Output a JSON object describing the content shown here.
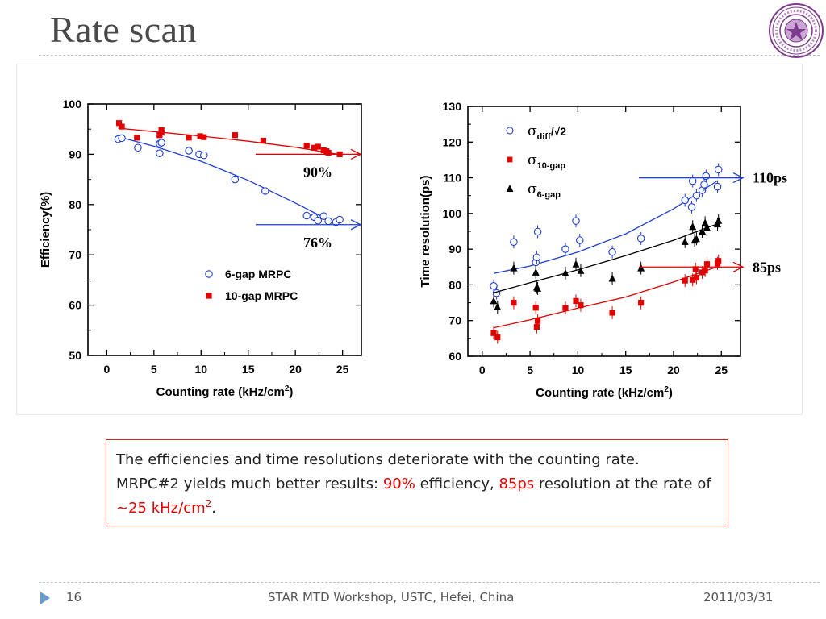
{
  "slide": {
    "title": "Rate scan",
    "footer": {
      "page": "16",
      "center": "STAR MTD Workshop, USTC, Hefei, China",
      "date": "2011/03/31"
    }
  },
  "textbox": {
    "line1": "The efficiencies and time resolutions deteriorate with the counting rate.",
    "line2_a": "MRPC#2 yields much better results: ",
    "line2_eff": "90%",
    "line2_b": " efficiency, ",
    "line2_res": "85ps",
    "line2_c": " resolution at the rate of ",
    "line2_rate": "~25 kHz/cm",
    "line2_sup": "2",
    "line2_end": "."
  },
  "colors": {
    "blue": "#1f3fd0",
    "red": "#e00000",
    "black": "#000000",
    "title": "#4a4a4a",
    "box_border": "#dd2222"
  },
  "chart_data": [
    {
      "type": "scatter",
      "xlabel": "Counting rate (kHz/cm",
      "xlabel_sup": "2",
      "xlabel_end": ")",
      "ylabel": "Efficiency(%)",
      "xlim": [
        -2,
        27
      ],
      "ylim": [
        50,
        100
      ],
      "xticks": [
        0,
        5,
        10,
        15,
        20,
        25
      ],
      "yticks": [
        50,
        60,
        70,
        80,
        90,
        100
      ],
      "legend_position": "bottom-right",
      "series": [
        {
          "name": "6-gap MRPC",
          "marker": "open-circle",
          "color": "#1f3fd0",
          "points": [
            [
              1.2,
              93
            ],
            [
              1.6,
              93.2
            ],
            [
              3.3,
              91.3
            ],
            [
              5.6,
              90.2
            ],
            [
              5.6,
              92.1
            ],
            [
              5.8,
              92.3
            ],
            [
              8.7,
              90.7
            ],
            [
              9.8,
              90
            ],
            [
              10.3,
              89.8
            ],
            [
              13.6,
              85
            ],
            [
              16.8,
              82.7
            ],
            [
              21.2,
              77.8
            ],
            [
              22,
              77.5
            ],
            [
              22.4,
              76.8
            ],
            [
              23,
              77.7
            ],
            [
              23.5,
              76.7
            ],
            [
              24.3,
              76.5
            ],
            [
              24.7,
              77
            ]
          ],
          "fit": [
            [
              1.2,
              93.5
            ],
            [
              5,
              91.6
            ],
            [
              10,
              88.6
            ],
            [
              15,
              84.8
            ],
            [
              20,
              80.3
            ],
            [
              24.5,
              76
            ]
          ]
        },
        {
          "name": "10-gap MRPC",
          "marker": "filled-square",
          "color": "#e00000",
          "points": [
            [
              1.3,
              96.2
            ],
            [
              1.6,
              95.5
            ],
            [
              3.2,
              93.3
            ],
            [
              5.6,
              93.8
            ],
            [
              5.8,
              94.3
            ],
            [
              5.8,
              94.8
            ],
            [
              8.7,
              93.3
            ],
            [
              9.9,
              93.6
            ],
            [
              10.3,
              93.4
            ],
            [
              13.6,
              93.8
            ],
            [
              16.6,
              92.7
            ],
            [
              21.2,
              91.7
            ],
            [
              22,
              91.3
            ],
            [
              22.4,
              91.5
            ],
            [
              23,
              90.8
            ],
            [
              23.3,
              90.6
            ],
            [
              23.5,
              90.3
            ],
            [
              24.7,
              90
            ]
          ],
          "fit": [
            [
              1.2,
              95.2
            ],
            [
              5,
              94.5
            ],
            [
              10,
              93.6
            ],
            [
              15,
              92.6
            ],
            [
              20,
              91.4
            ],
            [
              24.5,
              90
            ]
          ]
        }
      ],
      "annotations": [
        {
          "text": "90%",
          "arrow_y": 90
        },
        {
          "text": "76%",
          "arrow_y": 76
        }
      ]
    },
    {
      "type": "scatter",
      "xlabel": "Counting rate (kHz/cm",
      "xlabel_sup": "2",
      "xlabel_end": ")",
      "ylabel": "Time resolution(ps)",
      "xlim": [
        -1.5,
        27
      ],
      "ylim": [
        60,
        130
      ],
      "xticks": [
        0,
        5,
        10,
        15,
        20,
        25
      ],
      "yticks": [
        60,
        70,
        80,
        90,
        100,
        110,
        120,
        130
      ],
      "legend_position": "top-left",
      "series": [
        {
          "name": "σ_diff/√2",
          "legend_main": "σ",
          "legend_sub": "diff",
          "legend_tail": "/√2",
          "marker": "open-circle",
          "color": "#1f3fd0",
          "points": [
            [
              1.2,
              79.7
            ],
            [
              1.5,
              77.7
            ],
            [
              3.3,
              92
            ],
            [
              5.6,
              86.3
            ],
            [
              5.7,
              87.7
            ],
            [
              5.8,
              94.9
            ],
            [
              8.7,
              90
            ],
            [
              9.8,
              97.9
            ],
            [
              10.2,
              92.5
            ],
            [
              13.6,
              89.2
            ],
            [
              16.6,
              93
            ],
            [
              21.2,
              103.7
            ],
            [
              21.9,
              101.8
            ],
            [
              22,
              109.1
            ],
            [
              22.4,
              105
            ],
            [
              23,
              106.5
            ],
            [
              23.2,
              108.1
            ],
            [
              23.4,
              110.5
            ],
            [
              24.6,
              107.5
            ],
            [
              24.7,
              112.3
            ]
          ],
          "fit": [
            [
              1.2,
              83.2
            ],
            [
              5,
              85.3
            ],
            [
              10,
              89.2
            ],
            [
              15,
              94.3
            ],
            [
              20,
              101.3
            ],
            [
              24.5,
              109
            ]
          ]
        },
        {
          "name": "σ_10-gap",
          "legend_main": "σ",
          "legend_sub": "10-gap",
          "legend_tail": "",
          "marker": "filled-square",
          "color": "#e00000",
          "points": [
            [
              1.2,
              66.5
            ],
            [
              1.6,
              65.3
            ],
            [
              3.3,
              75
            ],
            [
              5.6,
              73.6
            ],
            [
              5.7,
              68.2
            ],
            [
              5.8,
              69.9
            ],
            [
              8.7,
              73.5
            ],
            [
              9.8,
              75.5
            ],
            [
              10.3,
              74.3
            ],
            [
              13.6,
              72.2
            ],
            [
              16.6,
              75
            ],
            [
              21.2,
              81.2
            ],
            [
              22,
              81.4
            ],
            [
              22.3,
              84.4
            ],
            [
              22.4,
              82
            ],
            [
              23,
              83.5
            ],
            [
              23.3,
              84
            ],
            [
              23.5,
              85.8
            ],
            [
              24.6,
              86
            ],
            [
              24.7,
              86.7
            ]
          ],
          "fit": [
            [
              1.2,
              68
            ],
            [
              5,
              70.2
            ],
            [
              10,
              73.5
            ],
            [
              15,
              76.6
            ],
            [
              20,
              80.8
            ],
            [
              24.5,
              85
            ]
          ]
        },
        {
          "name": "σ_6-gap",
          "legend_main": "σ",
          "legend_sub": "6-gap",
          "legend_tail": "",
          "marker": "filled-triangle",
          "color": "#000000",
          "points": [
            [
              1.2,
              75.5
            ],
            [
              1.6,
              73.8
            ],
            [
              3.3,
              84.7
            ],
            [
              5.6,
              83.5
            ],
            [
              5.7,
              79.3
            ],
            [
              5.8,
              79
            ],
            [
              8.7,
              83.3
            ],
            [
              9.8,
              85.8
            ],
            [
              10.3,
              84
            ],
            [
              13.6,
              81.8
            ],
            [
              16.6,
              84.7
            ],
            [
              21.2,
              92.1
            ],
            [
              22,
              96.3
            ],
            [
              22.2,
              92.5
            ],
            [
              22.4,
              92.9
            ],
            [
              23,
              95
            ],
            [
              23.3,
              97.4
            ],
            [
              23.5,
              96
            ],
            [
              24.6,
              97
            ],
            [
              24.7,
              98
            ]
          ],
          "fit": [
            [
              1.2,
              77.8
            ],
            [
              5,
              80.6
            ],
            [
              10,
              84.2
            ],
            [
              15,
              88.2
            ],
            [
              20,
              92.5
            ],
            [
              24.5,
              97
            ]
          ]
        }
      ],
      "annotations": [
        {
          "text": "110ps",
          "arrow_y": 110
        },
        {
          "text": "85ps",
          "arrow_y": 85
        }
      ]
    }
  ]
}
